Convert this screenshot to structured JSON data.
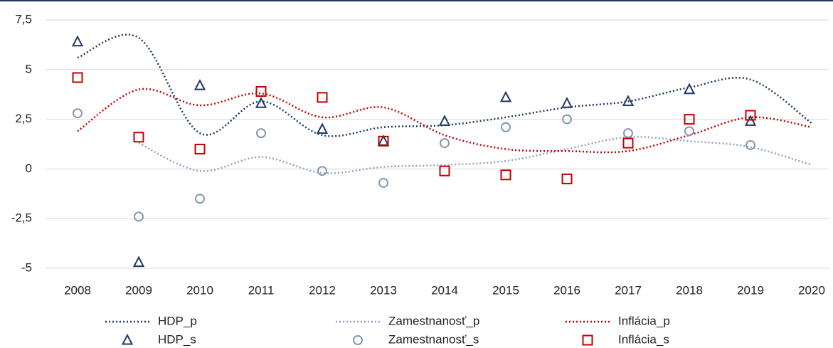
{
  "chart_data": {
    "type": "line",
    "categories": [
      "2008",
      "2009",
      "2010",
      "2011",
      "2012",
      "2013",
      "2014",
      "2015",
      "2016",
      "2017",
      "2018",
      "2019",
      "2020"
    ],
    "ylim": [
      -5,
      7.5
    ],
    "yticks": [
      -5,
      {
        "value": -2.5,
        "label": "-2,5"
      },
      0,
      {
        "value": 2.5,
        "label": "2,5"
      },
      5,
      {
        "value": 7.5,
        "label": "7,5"
      }
    ],
    "grid": true,
    "series": [
      {
        "name": "HDP_p",
        "color": "#1f3864",
        "style": "dotted",
        "values": [
          5.6,
          6.6,
          1.8,
          3.4,
          1.7,
          2.1,
          2.2,
          2.6,
          3.1,
          3.4,
          4.1,
          4.5,
          2.3
        ]
      },
      {
        "name": "Zamestnanosť_p",
        "color": "#8ea1c5",
        "style": "dotted",
        "values": [
          null,
          1.3,
          -0.1,
          0.6,
          -0.2,
          0.1,
          0.2,
          0.4,
          1.0,
          1.6,
          1.4,
          1.1,
          0.2
        ]
      },
      {
        "name": "Inflácia_p",
        "color": "#c00000",
        "style": "dotted",
        "values": [
          1.9,
          4.0,
          3.2,
          3.8,
          2.6,
          3.1,
          1.7,
          1.0,
          0.9,
          0.9,
          1.7,
          2.6,
          2.1
        ]
      },
      {
        "name": "HDP_s",
        "color": "#1f3864",
        "style": "triangle",
        "values": [
          6.4,
          -4.7,
          4.2,
          3.3,
          2.0,
          1.4,
          2.4,
          3.6,
          3.3,
          3.4,
          4.0,
          2.4,
          null
        ]
      },
      {
        "name": "Zamestnanosť_s",
        "color": "#8497b0",
        "style": "circle",
        "values": [
          2.8,
          -2.4,
          -1.5,
          1.8,
          -0.1,
          -0.7,
          1.3,
          2.1,
          2.5,
          1.8,
          1.9,
          1.2,
          null
        ]
      },
      {
        "name": "Inflácia_s",
        "color": "#c00000",
        "style": "square",
        "values": [
          4.6,
          1.6,
          1.0,
          3.9,
          3.6,
          1.4,
          -0.1,
          -0.3,
          -0.5,
          1.3,
          2.5,
          2.7,
          null
        ]
      }
    ]
  }
}
